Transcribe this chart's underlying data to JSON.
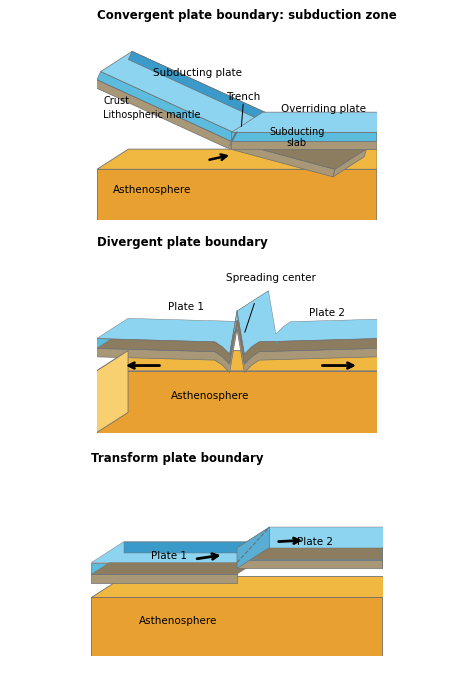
{
  "bg_color": "#ffffff",
  "title1": "Convergent plate boundary: subduction zone",
  "title2": "Divergent plate boundary",
  "title3": "Transform plate boundary",
  "label_asthenosphere1": "Asthenosphere",
  "label_asthenosphere2": "Asthenosphere",
  "label_asthenosphere3": "Asthenosphere",
  "label_subducting_plate": "Subducting plate",
  "label_overriding_plate": "Overriding plate",
  "label_crust": "Crust",
  "label_litho": "Lithospheric mantle",
  "label_subducting_slab": "Subducting\nslab",
  "label_trench": "Trench",
  "label_spreading": "Spreading center",
  "label_plate1_div": "Plate 1",
  "label_plate2_div": "Plate 2",
  "label_plate1_trans": "Plate 1",
  "label_plate2_trans": "Plate 2",
  "col_ocean_deep": "#3a9ac9",
  "col_ocean_mid": "#5bbcde",
  "col_ocean_light": "#8dd4f0",
  "col_ocean_top": "#a8dcf0",
  "col_crust": "#c4b48c",
  "col_litho": "#a89878",
  "col_litho_dark": "#8c7c60",
  "col_asth_front": "#e8a030",
  "col_asth_top": "#f0b840",
  "col_asth_light": "#f8d070",
  "col_border": "#707070",
  "col_text": "#000000"
}
